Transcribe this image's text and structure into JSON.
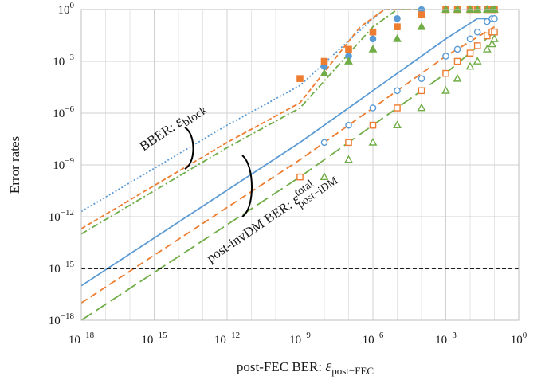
{
  "chart_data": {
    "type": "line",
    "x_scale": "log",
    "y_scale": "log",
    "xlim": [
      1e-18,
      1
    ],
    "ylim": [
      1e-18,
      1
    ],
    "grid": true,
    "xlabel_prefix": "post-FEC BER: ",
    "xlabel_symbol": "ε",
    "xlabel_subscript": "post−FEC",
    "ylabel": "Error rates",
    "x_ticks": [
      {
        "base": "10",
        "exp": "−18",
        "value": 1e-18
      },
      {
        "base": "10",
        "exp": "−15",
        "value": 1e-15
      },
      {
        "base": "10",
        "exp": "−12",
        "value": 1e-12
      },
      {
        "base": "10",
        "exp": "−9",
        "value": 1e-09
      },
      {
        "base": "10",
        "exp": "−6",
        "value": 1e-06
      },
      {
        "base": "10",
        "exp": "−3",
        "value": 0.001
      },
      {
        "base": "10",
        "exp": "0",
        "value": 1
      }
    ],
    "y_ticks": [
      {
        "base": "10",
        "exp": "0",
        "value": 1
      },
      {
        "base": "10",
        "exp": "−3",
        "value": 0.001
      },
      {
        "base": "10",
        "exp": "−6",
        "value": 1e-06
      },
      {
        "base": "10",
        "exp": "−9",
        "value": 1e-09
      },
      {
        "base": "10",
        "exp": "−12",
        "value": 1e-12
      },
      {
        "base": "10",
        "exp": "−15",
        "value": 1e-15
      },
      {
        "base": "10",
        "exp": "−18",
        "value": 1e-18
      }
    ],
    "colors": {
      "blue": "#5b9bd5",
      "orange": "#ed7d31",
      "green": "#70ad47",
      "black": "#000000"
    },
    "reference_line": {
      "y": 1e-15,
      "color": "#000000",
      "dash": "short-dash"
    },
    "series": [
      {
        "group": "bber",
        "color": "#5b9bd5",
        "style": "dotted",
        "x": [
          1e-18,
          1e-12,
          1e-09,
          1e-06,
          3e-06,
          0.0001
        ],
        "y": [
          2e-12,
          2e-07,
          4e-05,
          0.3,
          1,
          1
        ]
      },
      {
        "group": "bber",
        "color": "#ed7d31",
        "style": "short-dash",
        "x": [
          1e-18,
          1e-12,
          1e-09,
          3e-07,
          3e-06,
          0.0001
        ],
        "y": [
          2e-13,
          2e-08,
          4e-06,
          0.1,
          1,
          1
        ]
      },
      {
        "group": "bber",
        "color": "#70ad47",
        "style": "dash-dot",
        "x": [
          1e-18,
          1e-12,
          1e-09,
          1e-06,
          1e-05,
          0.0001
        ],
        "y": [
          1e-13,
          1e-08,
          2e-06,
          0.1,
          1,
          1
        ]
      },
      {
        "group": "post-idm",
        "color": "#5b9bd5",
        "style": "solid",
        "x": [
          1e-18,
          1e-09,
          1e-06,
          0.001,
          0.02,
          0.1
        ],
        "y": [
          1e-16,
          2e-08,
          2e-05,
          0.02,
          0.3,
          0.3
        ]
      },
      {
        "group": "post-idm",
        "color": "#ed7d31",
        "style": "dash",
        "x": [
          1e-18,
          1e-09,
          1e-06,
          0.001,
          0.1
        ],
        "y": [
          1e-17,
          2e-09,
          2e-06,
          0.002,
          0.1
        ]
      },
      {
        "group": "post-idm",
        "color": "#70ad47",
        "style": "long-dash",
        "x": [
          1e-18,
          1e-09,
          1e-06,
          0.001,
          0.1
        ],
        "y": [
          1e-18,
          2e-10,
          2e-07,
          0.0002,
          0.05
        ]
      }
    ],
    "markers": [
      {
        "shape": "circle-filled",
        "color": "#5b9bd5",
        "x": [
          1e-08,
          1e-07,
          1e-06,
          1e-05,
          0.0001,
          0.001,
          0.003,
          0.01,
          0.02,
          0.05,
          0.08,
          0.1
        ],
        "y": [
          0.0005,
          0.002,
          0.02,
          0.3,
          1,
          1,
          1,
          1,
          1,
          1,
          1,
          1
        ]
      },
      {
        "shape": "square-filled",
        "color": "#ed7d31",
        "x": [
          1e-09,
          1e-08,
          1e-07,
          1e-06,
          1e-05,
          0.0001,
          0.001,
          0.003,
          0.01,
          0.02,
          0.05,
          0.08,
          0.1
        ],
        "y": [
          0.0001,
          0.001,
          0.005,
          0.05,
          0.1,
          0.5,
          1,
          1,
          1,
          1,
          1,
          1,
          1
        ]
      },
      {
        "shape": "triangle-filled",
        "color": "#70ad47",
        "x": [
          1e-08,
          1e-07,
          1e-06,
          1e-05,
          0.0001,
          0.001,
          0.003,
          0.01,
          0.02,
          0.05,
          0.08,
          0.1
        ],
        "y": [
          0.0002,
          0.001,
          0.005,
          0.02,
          0.1,
          1,
          1,
          1,
          1,
          1,
          1,
          1
        ]
      },
      {
        "shape": "circle-open",
        "color": "#5b9bd5",
        "x": [
          1e-08,
          1e-07,
          1e-06,
          1e-05,
          0.0001,
          0.001,
          0.003,
          0.01,
          0.02,
          0.05,
          0.08,
          0.1
        ],
        "y": [
          2e-08,
          2e-07,
          2e-06,
          2e-05,
          0.0001,
          0.002,
          0.005,
          0.02,
          0.05,
          0.2,
          0.3,
          0.3
        ]
      },
      {
        "shape": "square-open",
        "color": "#ed7d31",
        "x": [
          1e-09,
          1e-07,
          1e-06,
          1e-05,
          0.0001,
          0.001,
          0.003,
          0.01,
          0.02,
          0.05,
          0.08,
          0.1
        ],
        "y": [
          2e-10,
          2e-08,
          2e-07,
          2e-06,
          2e-05,
          0.0002,
          0.001,
          0.003,
          0.008,
          0.03,
          0.05,
          0.05
        ]
      },
      {
        "shape": "triangle-open",
        "color": "#70ad47",
        "x": [
          1e-08,
          1e-07,
          1e-06,
          1e-05,
          0.0001,
          0.001,
          0.003,
          0.01,
          0.02,
          0.05,
          0.08,
          0.1
        ],
        "y": [
          2e-10,
          2e-09,
          2e-08,
          2e-07,
          2e-06,
          2e-05,
          0.0001,
          0.0005,
          0.001,
          0.005,
          0.01,
          0.02
        ]
      }
    ],
    "annotations": {
      "bber_prefix": "BBER: ",
      "bber_symbol": "ε",
      "bber_subscript": "block",
      "postidm_prefix": "post-invDM BER: ",
      "postidm_symbol": "ε",
      "postidm_superscript": "total",
      "postidm_subscript": "post−iDM"
    }
  }
}
